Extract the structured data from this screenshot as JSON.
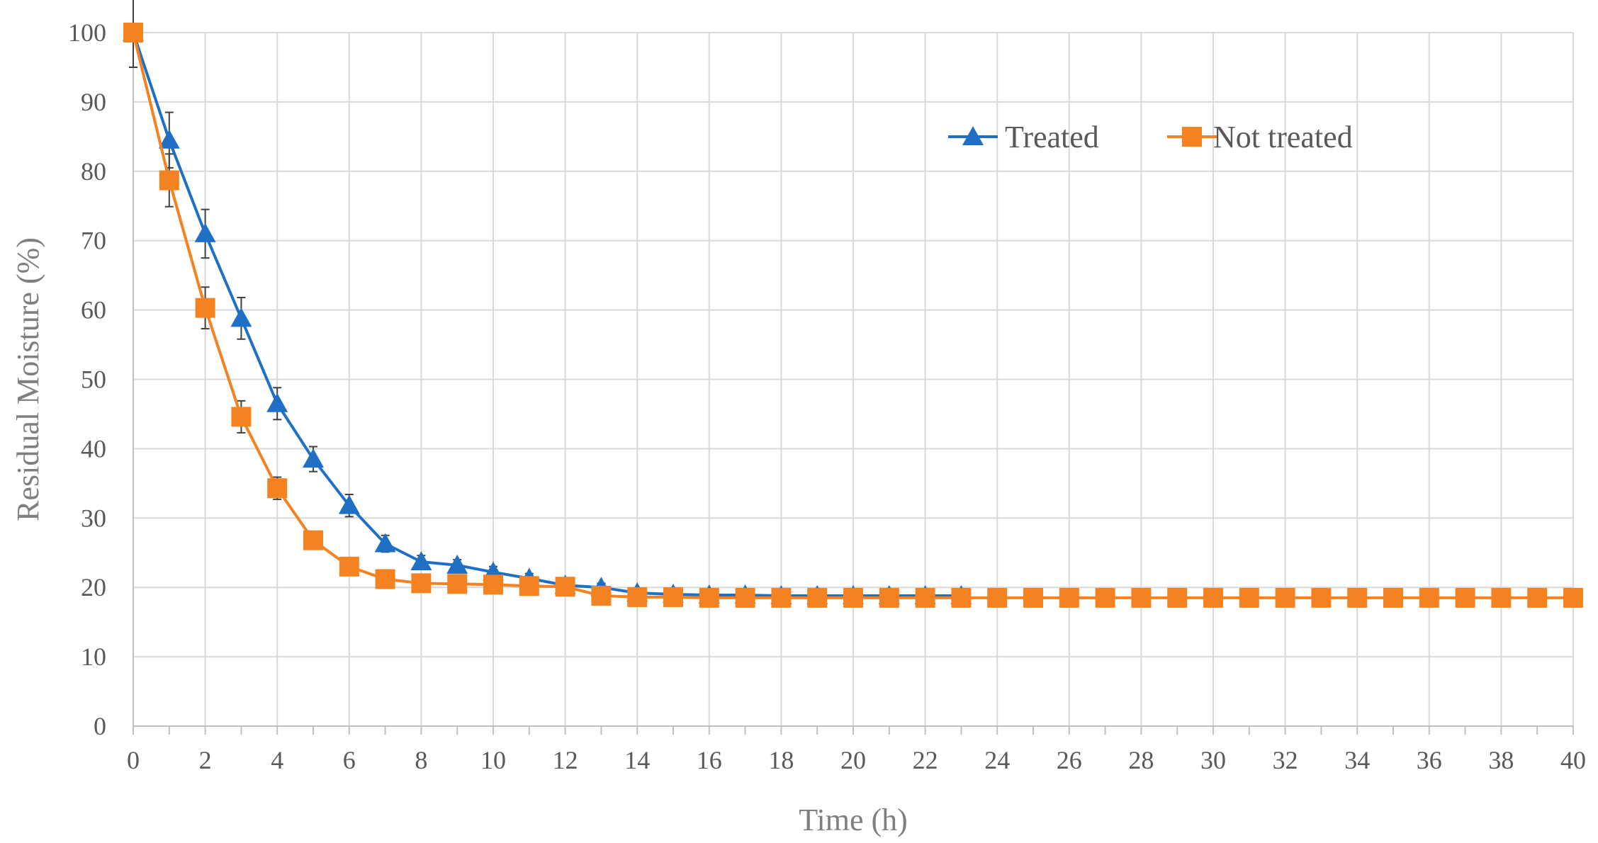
{
  "chart_data": {
    "type": "line",
    "title": "",
    "xlabel": "Time (h)",
    "ylabel": "Residual Moisture (%)",
    "xlim": [
      0,
      40
    ],
    "ylim": [
      0,
      100
    ],
    "x_ticks": [
      0,
      2,
      4,
      6,
      8,
      10,
      12,
      14,
      16,
      18,
      20,
      22,
      24,
      26,
      28,
      30,
      32,
      34,
      36,
      38,
      40
    ],
    "y_ticks": [
      0,
      10,
      20,
      30,
      40,
      50,
      60,
      70,
      80,
      90,
      100
    ],
    "grid": true,
    "legend_position": "top-right",
    "series": [
      {
        "name": "Treated",
        "color": "#1f6fc5",
        "marker": "triangle",
        "x": [
          0,
          1,
          2,
          3,
          4,
          5,
          6,
          7,
          8,
          9,
          10,
          11,
          12,
          13,
          14,
          15,
          16,
          17,
          18,
          19,
          20,
          21,
          22,
          23
        ],
        "y": [
          100,
          84.5,
          71,
          58.8,
          46.5,
          38.5,
          31.8,
          26.3,
          23.7,
          23.2,
          22.2,
          21.3,
          20.3,
          20.0,
          19.2,
          19.0,
          18.9,
          18.9,
          18.8,
          18.8,
          18.8,
          18.8,
          18.8,
          18.8
        ],
        "error": [
          5,
          4,
          3.5,
          3,
          2.3,
          1.8,
          1.6,
          1.2,
          0.9,
          0.8,
          0.8,
          0.7,
          0.7,
          0.6,
          0.5,
          0.5,
          0.4,
          0.4,
          0.4,
          0.4,
          0.4,
          0.4,
          0.4,
          0.4
        ]
      },
      {
        "name": "Not treated",
        "color": "#f58220",
        "marker": "square",
        "x": [
          0,
          1,
          2,
          3,
          4,
          5,
          6,
          7,
          8,
          9,
          10,
          11,
          12,
          13,
          14,
          15,
          16,
          17,
          18,
          19,
          20,
          21,
          22,
          23,
          24,
          25,
          26,
          27,
          28,
          29,
          30,
          31,
          32,
          33,
          34,
          35,
          36,
          37,
          38,
          39,
          40
        ],
        "y": [
          100,
          78.7,
          60.3,
          44.6,
          34.3,
          26.8,
          23.0,
          21.2,
          20.6,
          20.5,
          20.4,
          20.2,
          20.1,
          18.8,
          18.6,
          18.6,
          18.5,
          18.5,
          18.5,
          18.5,
          18.5,
          18.5,
          18.5,
          18.5,
          18.5,
          18.5,
          18.5,
          18.5,
          18.5,
          18.5,
          18.5,
          18.5,
          18.5,
          18.5,
          18.5,
          18.5,
          18.5,
          18.5,
          18.5,
          18.5,
          18.5
        ],
        "error": [
          5,
          3.8,
          3,
          2.3,
          1.6,
          1.2,
          1.0,
          0.8,
          0.6,
          0.6,
          0.6,
          0.5,
          0.5,
          0.4,
          0.4,
          0.4,
          0.3,
          0.3,
          0.3,
          0.3,
          0.3,
          0.3,
          0.3,
          0.3,
          0.3,
          0.3,
          0.3,
          0.3,
          0.3,
          0.3,
          0.3,
          0.3,
          0.3,
          0.3,
          0.3,
          0.3,
          0.3,
          0.3,
          0.3,
          0.3,
          0.3
        ]
      }
    ]
  }
}
